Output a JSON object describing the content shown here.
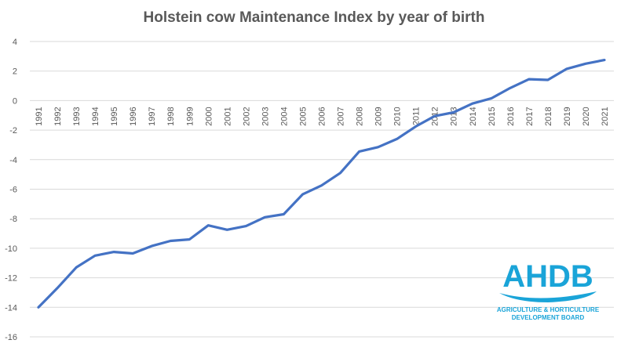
{
  "chart_data": {
    "type": "line",
    "title": "Holstein cow Maintenance Index by year of birth",
    "xlabel": "",
    "ylabel": "",
    "ylim": [
      -16,
      4
    ],
    "yticks": [
      4,
      2,
      0,
      -2,
      -4,
      -6,
      -8,
      -10,
      -12,
      -14,
      -16
    ],
    "grid": true,
    "x": [
      "1991",
      "1992",
      "1993",
      "1994",
      "1995",
      "1996",
      "1997",
      "1998",
      "1999",
      "2000",
      "2001",
      "2002",
      "2003",
      "2004",
      "2005",
      "2006",
      "2007",
      "2008",
      "2009",
      "2010",
      "2011",
      "2012",
      "2013",
      "2014",
      "2015",
      "2016",
      "2017",
      "2018",
      "2019",
      "2020",
      "2021"
    ],
    "series": [
      {
        "values": [
          -14.0,
          -12.7,
          -11.3,
          -10.5,
          -10.25,
          -10.35,
          -9.85,
          -9.5,
          -9.4,
          -8.45,
          -8.75,
          -8.5,
          -7.9,
          -7.7,
          -6.35,
          -5.75,
          -4.9,
          -3.45,
          -3.15,
          -2.6,
          -1.75,
          -1.05,
          -0.8,
          -0.2,
          0.15,
          0.85,
          1.45,
          1.4,
          2.15,
          2.5,
          2.75
        ],
        "color": "#4472C4"
      }
    ]
  },
  "logo": {
    "name": "AHDB",
    "line1": "AGRICULTURE & HORTICULTURE",
    "line2": "DEVELOPMENT BOARD",
    "color": "#1aa4d8"
  }
}
